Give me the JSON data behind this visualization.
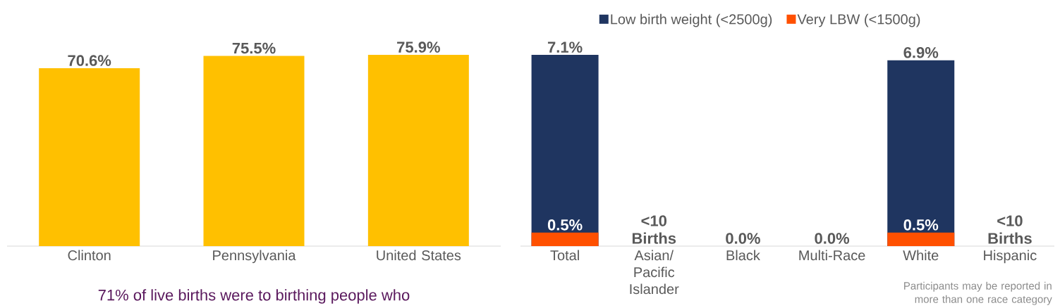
{
  "chart_data": [
    {
      "type": "bar",
      "categories": [
        "Clinton",
        "Pennsylvania",
        "United States"
      ],
      "values": [
        70.6,
        75.5,
        75.9
      ],
      "value_labels": [
        "70.6%",
        "75.5%",
        "75.9%"
      ],
      "color": "#ffc000",
      "annotations": [
        "71% of live births were to birthing people who"
      ]
    },
    {
      "type": "bar",
      "categories": [
        "Total",
        "Asian/ Pacific Islander",
        "Black",
        "Multi-Race",
        "White",
        "Hispanic"
      ],
      "legend": "top",
      "series": [
        {
          "name": "Low birth weight (<2500g)",
          "color": "#1f3560",
          "values": [
            7.1,
            null,
            0.0,
            0.0,
            6.9,
            null
          ],
          "value_labels": [
            "7.1%",
            "<10 Births",
            "0.0%",
            "0.0%",
            "6.9%",
            "<10 Births"
          ]
        },
        {
          "name": "Very LBW (<1500g)",
          "color": "#ff5000",
          "values": [
            0.5,
            null,
            0.0,
            0.0,
            0.5,
            null
          ],
          "value_labels": [
            "0.5%",
            null,
            null,
            null,
            "0.5%",
            null
          ]
        }
      ],
      "annotations": [
        "Participants may be reported in more than one race category"
      ]
    }
  ]
}
